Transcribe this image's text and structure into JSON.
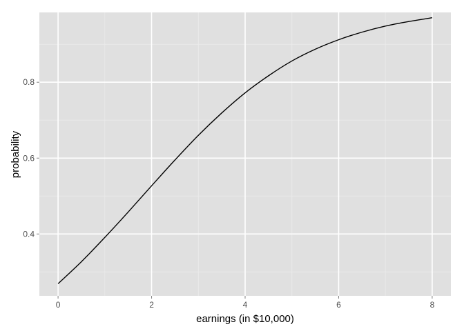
{
  "chart_data": {
    "type": "line",
    "title": "",
    "xlabel": "earnings (in $10,000)",
    "ylabel": "probability",
    "xlim": [
      -0.4,
      8.4
    ],
    "ylim": [
      0.237,
      0.984
    ],
    "x_ticks": [
      0,
      2,
      4,
      6,
      8
    ],
    "x_tick_labels": [
      "0",
      "2",
      "4",
      "6",
      "8"
    ],
    "x_minor_ticks": [
      1,
      3,
      5,
      7
    ],
    "y_ticks": [
      0.4,
      0.6,
      0.8
    ],
    "y_tick_labels": [
      "0.4",
      "0.6",
      "0.8"
    ],
    "y_minor_ticks": [
      0.3,
      0.5,
      0.7,
      0.9
    ],
    "grid": true,
    "legend": "none",
    "colors": {
      "panel": "#e0e0e0",
      "grid_major": "#ffffff",
      "grid_minor": "#ebebeb",
      "line": "#000000",
      "tick_label": "#4d4d4d",
      "tick_mark": "#7f7f7f"
    },
    "series": [
      {
        "x": [
          0,
          0.5,
          1,
          1.5,
          2,
          2.5,
          3,
          3.5,
          4,
          4.5,
          5,
          5.5,
          6,
          6.5,
          7,
          7.5,
          8
        ],
        "y": [
          0.269,
          0.327,
          0.391,
          0.458,
          0.527,
          0.595,
          0.66,
          0.719,
          0.772,
          0.817,
          0.856,
          0.887,
          0.912,
          0.932,
          0.948,
          0.96,
          0.97
        ]
      }
    ]
  }
}
